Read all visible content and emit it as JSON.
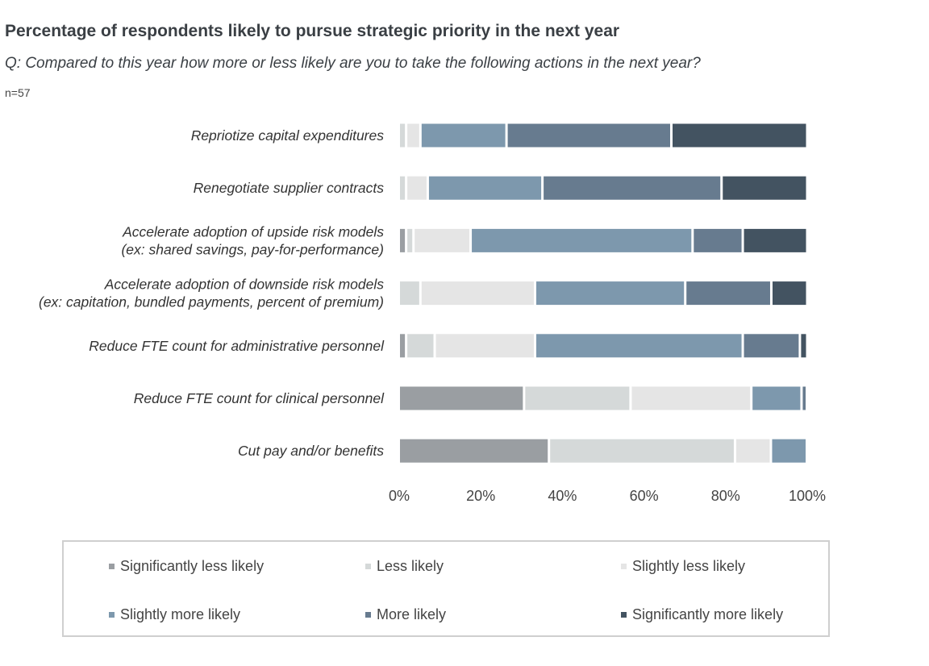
{
  "chart_data": {
    "type": "bar",
    "orientation": "horizontal",
    "stacked": true,
    "title": "Percentage of respondents likely to pursue strategic priority in the next year",
    "subtitle": "Q: Compared to this year how more or less likely are you to take the following actions in the next year?",
    "note": "n=57",
    "categories": [
      [
        "Repriotize capital expenditures"
      ],
      [
        "Renegotiate supplier contracts"
      ],
      [
        "Accelerate adoption of upside risk models",
        "(ex: shared savings, pay-for-performance)"
      ],
      [
        "Accelerate adoption of downside risk models",
        "(ex: capitation, bundled payments, percent of premium)"
      ],
      [
        "Reduce FTE count for administrative personnel"
      ],
      [
        "Reduce FTE count for clinical personnel"
      ],
      [
        "Cut pay and/or benefits"
      ]
    ],
    "xlim": [
      0,
      100
    ],
    "x_ticks": [
      "0%",
      "20%",
      "40%",
      "60%",
      "80%",
      "100%"
    ],
    "grid": false,
    "legend_position": "bottom",
    "series": [
      {
        "name": "Significantly less likely",
        "color": "#9a9ea2",
        "values": [
          0,
          0,
          1.8,
          0,
          1.8,
          30.7,
          36.8
        ]
      },
      {
        "name": "Less likely",
        "color": "#d5d9d9",
        "values": [
          1.8,
          1.8,
          1.8,
          5.3,
          7.0,
          26.1,
          45.6
        ]
      },
      {
        "name": "Slightly less likely",
        "color": "#e5e5e5",
        "values": [
          3.5,
          5.3,
          14.0,
          28.1,
          24.6,
          29.6,
          8.8
        ]
      },
      {
        "name": "Slightly more likely",
        "color": "#7d98ad",
        "values": [
          21.1,
          28.1,
          54.4,
          36.8,
          50.9,
          12.3,
          8.8
        ]
      },
      {
        "name": "More likely",
        "color": "#677b8f",
        "values": [
          40.4,
          43.9,
          12.3,
          21.1,
          14.0,
          1.3,
          0
        ]
      },
      {
        "name": "Significantly more likely",
        "color": "#435361",
        "values": [
          33.3,
          21.0,
          15.8,
          8.8,
          1.8,
          0,
          0
        ]
      }
    ]
  }
}
